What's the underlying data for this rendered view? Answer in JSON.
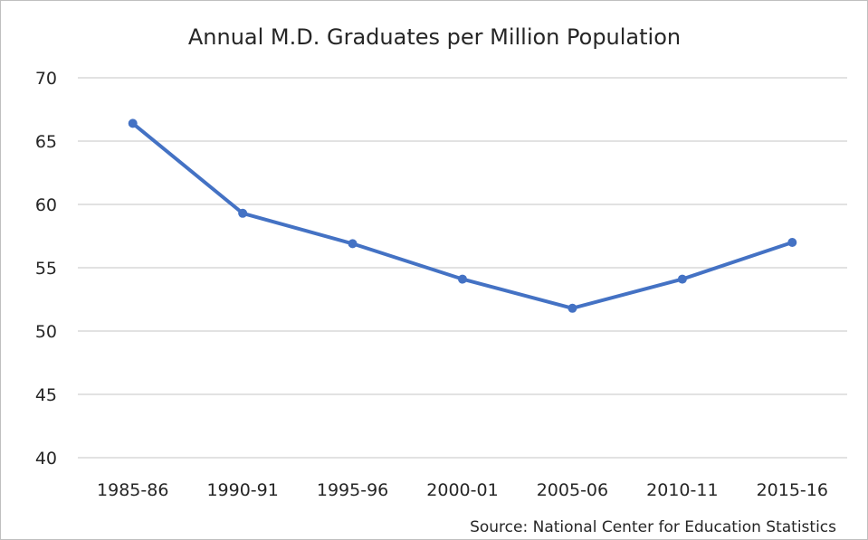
{
  "chart_data": {
    "type": "line",
    "title": "Annual M.D. Graduates per Million Population",
    "xlabel": "",
    "ylabel": "",
    "categories": [
      "1985-86",
      "1990-91",
      "1995-96",
      "2000-01",
      "2005-06",
      "2010-11",
      "2015-16"
    ],
    "series": [
      {
        "values": [
          66.4,
          59.3,
          56.9,
          54.1,
          51.8,
          54.1,
          57.0
        ],
        "color": "#4472C4"
      }
    ],
    "ylim": [
      40,
      70
    ],
    "yticks": [
      40,
      45,
      50,
      55,
      60,
      65,
      70
    ],
    "grid": true,
    "legend": "none",
    "annotation": "Source: National Center for Education Statistics"
  }
}
